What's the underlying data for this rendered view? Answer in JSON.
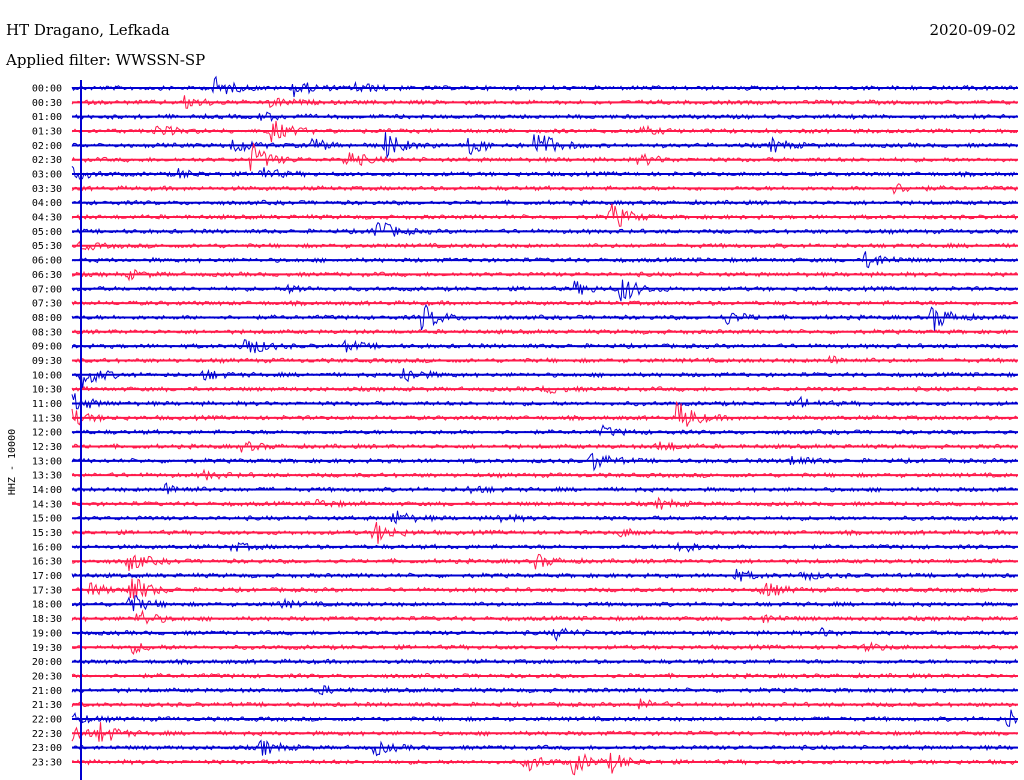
{
  "header": {
    "station": "HT Dragano, Lefkada",
    "filter": "Applied filter: WWSSN-SP",
    "date": "2020-09-02"
  },
  "chart_data": {
    "type": "line",
    "title": "HT Dragano, Lefkada",
    "subtitle": "Applied filter: WWSSN-SP",
    "ylabel": "HHZ - 10000",
    "series_colors": [
      "#0000d0",
      "#ff1a4b"
    ],
    "rows": [
      {
        "label": "00:00",
        "color": "#0000d0",
        "events": [
          {
            "t": 0.15,
            "a": 11
          },
          {
            "t": 0.235,
            "a": 9
          },
          {
            "t": 0.3,
            "a": 6
          }
        ]
      },
      {
        "label": "00:30",
        "color": "#ff1a4b",
        "events": [
          {
            "t": 0.12,
            "a": 7
          },
          {
            "t": 0.21,
            "a": 5
          }
        ]
      },
      {
        "label": "01:00",
        "color": "#0000d0",
        "events": [
          {
            "t": 0.2,
            "a": 4
          }
        ]
      },
      {
        "label": "01:30",
        "color": "#ff1a4b",
        "events": [
          {
            "t": 0.09,
            "a": 6
          },
          {
            "t": 0.21,
            "a": 12
          },
          {
            "t": 0.6,
            "a": 4
          }
        ]
      },
      {
        "label": "02:00",
        "color": "#0000d0",
        "events": [
          {
            "t": 0.17,
            "a": 9
          },
          {
            "t": 0.25,
            "a": 8
          },
          {
            "t": 0.33,
            "a": 14
          },
          {
            "t": 0.42,
            "a": 9
          },
          {
            "t": 0.49,
            "a": 18
          },
          {
            "t": 0.74,
            "a": 7
          }
        ]
      },
      {
        "label": "02:30",
        "color": "#ff1a4b",
        "events": [
          {
            "t": 0.19,
            "a": 16
          },
          {
            "t": 0.29,
            "a": 10
          },
          {
            "t": 0.6,
            "a": 6
          }
        ]
      },
      {
        "label": "03:00",
        "color": "#0000d0",
        "events": [
          {
            "t": 0.0,
            "a": 6
          },
          {
            "t": 0.195,
            "a": 9
          },
          {
            "t": 0.11,
            "a": 5
          }
        ]
      },
      {
        "label": "03:30",
        "color": "#ff1a4b",
        "events": [
          {
            "t": 0.87,
            "a": 5
          }
        ]
      },
      {
        "label": "04:00",
        "color": "#0000d0",
        "events": []
      },
      {
        "label": "04:30",
        "color": "#ff1a4b",
        "events": [
          {
            "t": 0.57,
            "a": 14
          }
        ]
      },
      {
        "label": "05:00",
        "color": "#0000d0",
        "events": [
          {
            "t": 0.32,
            "a": 14
          }
        ]
      },
      {
        "label": "05:30",
        "color": "#ff1a4b",
        "events": [
          {
            "t": 0.01,
            "a": 4
          }
        ]
      },
      {
        "label": "06:00",
        "color": "#0000d0",
        "events": [
          {
            "t": 0.84,
            "a": 10
          }
        ]
      },
      {
        "label": "06:30",
        "color": "#ff1a4b",
        "events": [
          {
            "t": 0.06,
            "a": 4
          }
        ]
      },
      {
        "label": "07:00",
        "color": "#0000d0",
        "events": [
          {
            "t": 0.53,
            "a": 7
          },
          {
            "t": 0.58,
            "a": 14
          },
          {
            "t": 0.23,
            "a": 4
          }
        ]
      },
      {
        "label": "07:30",
        "color": "#ff1a4b",
        "events": []
      },
      {
        "label": "08:00",
        "color": "#0000d0",
        "events": [
          {
            "t": 0.37,
            "a": 14
          },
          {
            "t": 0.69,
            "a": 7
          },
          {
            "t": 0.91,
            "a": 14
          }
        ]
      },
      {
        "label": "08:30",
        "color": "#ff1a4b",
        "events": []
      },
      {
        "label": "09:00",
        "color": "#0000d0",
        "events": [
          {
            "t": 0.18,
            "a": 14
          },
          {
            "t": 0.29,
            "a": 5
          }
        ]
      },
      {
        "label": "09:30",
        "color": "#ff1a4b",
        "events": [
          {
            "t": 0.8,
            "a": 4
          }
        ]
      },
      {
        "label": "10:00",
        "color": "#0000d0",
        "events": [
          {
            "t": 0.01,
            "a": 14
          },
          {
            "t": 0.35,
            "a": 9
          },
          {
            "t": 0.14,
            "a": 5
          }
        ]
      },
      {
        "label": "10:30",
        "color": "#ff1a4b",
        "events": [
          {
            "t": 0.5,
            "a": 4
          }
        ]
      },
      {
        "label": "11:00",
        "color": "#0000d0",
        "events": [
          {
            "t": 0.0,
            "a": 10
          },
          {
            "t": 0.77,
            "a": 5
          }
        ]
      },
      {
        "label": "11:30",
        "color": "#ff1a4b",
        "events": [
          {
            "t": 0.0,
            "a": 8
          },
          {
            "t": 0.64,
            "a": 18
          }
        ]
      },
      {
        "label": "12:00",
        "color": "#0000d0",
        "events": [
          {
            "t": 0.56,
            "a": 5
          }
        ]
      },
      {
        "label": "12:30",
        "color": "#ff1a4b",
        "events": [
          {
            "t": 0.18,
            "a": 5
          },
          {
            "t": 0.62,
            "a": 6
          }
        ]
      },
      {
        "label": "13:00",
        "color": "#0000d0",
        "events": [
          {
            "t": 0.55,
            "a": 10
          },
          {
            "t": 0.76,
            "a": 5
          }
        ]
      },
      {
        "label": "13:30",
        "color": "#ff1a4b",
        "events": [
          {
            "t": 0.14,
            "a": 4
          }
        ]
      },
      {
        "label": "14:00",
        "color": "#0000d0",
        "events": [
          {
            "t": 0.1,
            "a": 6
          },
          {
            "t": 0.42,
            "a": 4
          }
        ]
      },
      {
        "label": "14:30",
        "color": "#ff1a4b",
        "events": [
          {
            "t": 0.26,
            "a": 4
          },
          {
            "t": 0.62,
            "a": 5
          }
        ]
      },
      {
        "label": "15:00",
        "color": "#0000d0",
        "events": [
          {
            "t": 0.34,
            "a": 8
          },
          {
            "t": 0.45,
            "a": 4
          }
        ]
      },
      {
        "label": "15:30",
        "color": "#ff1a4b",
        "events": [
          {
            "t": 0.32,
            "a": 12
          },
          {
            "t": 0.58,
            "a": 4
          }
        ]
      },
      {
        "label": "16:00",
        "color": "#0000d0",
        "events": [
          {
            "t": 0.64,
            "a": 7
          },
          {
            "t": 0.17,
            "a": 4
          }
        ]
      },
      {
        "label": "16:30",
        "color": "#ff1a4b",
        "events": [
          {
            "t": 0.06,
            "a": 10
          },
          {
            "t": 0.49,
            "a": 7
          }
        ]
      },
      {
        "label": "17:00",
        "color": "#0000d0",
        "events": [
          {
            "t": 0.7,
            "a": 6
          },
          {
            "t": 0.77,
            "a": 5
          }
        ]
      },
      {
        "label": "17:30",
        "color": "#ff1a4b",
        "events": [
          {
            "t": 0.06,
            "a": 18
          },
          {
            "t": 0.73,
            "a": 9
          },
          {
            "t": 0.02,
            "a": 6
          }
        ]
      },
      {
        "label": "18:00",
        "color": "#0000d0",
        "events": [
          {
            "t": 0.06,
            "a": 11
          },
          {
            "t": 0.22,
            "a": 4
          }
        ]
      },
      {
        "label": "18:30",
        "color": "#ff1a4b",
        "events": [
          {
            "t": 0.07,
            "a": 9
          },
          {
            "t": 0.73,
            "a": 4
          }
        ]
      },
      {
        "label": "19:00",
        "color": "#0000d0",
        "events": [
          {
            "t": 0.51,
            "a": 6
          },
          {
            "t": 0.79,
            "a": 4
          }
        ]
      },
      {
        "label": "19:30",
        "color": "#ff1a4b",
        "events": [
          {
            "t": 0.06,
            "a": 6
          },
          {
            "t": 0.84,
            "a": 4
          }
        ]
      },
      {
        "label": "20:00",
        "color": "#0000d0",
        "events": []
      },
      {
        "label": "20:30",
        "color": "#ff1a4b",
        "events": []
      },
      {
        "label": "21:00",
        "color": "#0000d0",
        "events": [
          {
            "t": 0.26,
            "a": 4
          }
        ]
      },
      {
        "label": "21:30",
        "color": "#ff1a4b",
        "events": [
          {
            "t": 0.6,
            "a": 5
          }
        ]
      },
      {
        "label": "22:00",
        "color": "#0000d0",
        "events": [
          {
            "t": 0.0,
            "a": 6
          },
          {
            "t": 0.99,
            "a": 10
          }
        ]
      },
      {
        "label": "22:30",
        "color": "#ff1a4b",
        "events": [
          {
            "t": 0.0,
            "a": 8
          },
          {
            "t": 0.03,
            "a": 10
          }
        ]
      },
      {
        "label": "23:00",
        "color": "#0000d0",
        "events": [
          {
            "t": 0.2,
            "a": 8
          },
          {
            "t": 0.32,
            "a": 7
          }
        ]
      },
      {
        "label": "23:30",
        "color": "#ff1a4b",
        "events": [
          {
            "t": 0.48,
            "a": 9
          },
          {
            "t": 0.53,
            "a": 12
          },
          {
            "t": 0.57,
            "a": 9
          }
        ]
      }
    ]
  }
}
